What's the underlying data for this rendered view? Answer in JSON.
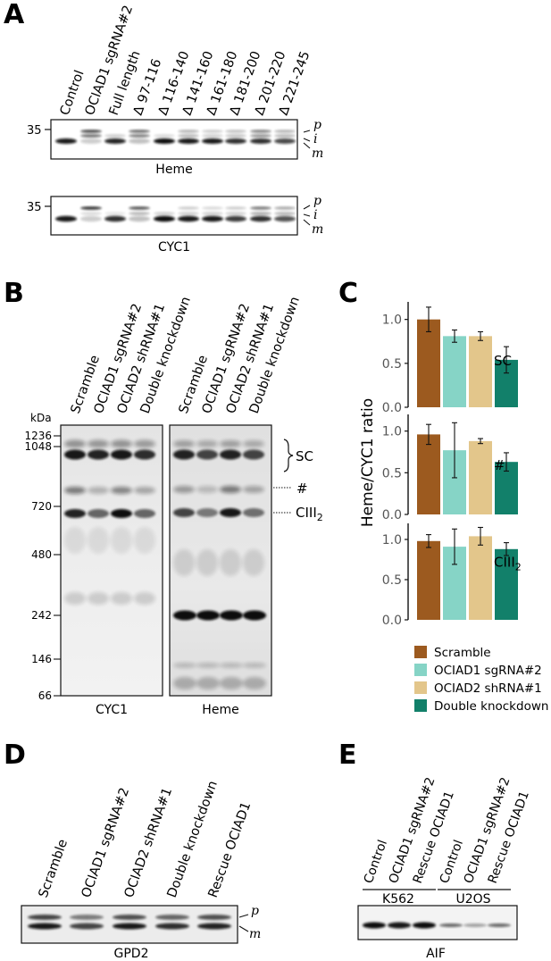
{
  "panelA": {
    "letter": "A",
    "lanes": [
      "Control",
      "OCIAD1 sgRNA#2",
      "Full length",
      "Δ 97-116",
      "Δ 116-140",
      "Δ 141-160",
      "Δ 161-180",
      "Δ 181-200",
      "Δ 201-220",
      "Δ 221-245"
    ],
    "marker": "35",
    "blot1_caption": "Heme",
    "blot2_caption": "CYC1",
    "band_labels": [
      "p",
      "i",
      "m"
    ]
  },
  "panelB": {
    "letter": "B",
    "lanes": [
      "Scramble",
      "OCIAD1 sgRNA#2",
      "OCIAD2 shRNA#1",
      "Double knockdown"
    ],
    "kda_label": "kDa",
    "markers": [
      "1236",
      "1048",
      "720",
      "480",
      "242",
      "146",
      "66"
    ],
    "caption_left": "CYC1",
    "caption_right": "Heme",
    "label_sc": "SC",
    "label_hash": "#",
    "label_ciii": "CIII",
    "label_ciii_sub": "2"
  },
  "panelC": {
    "letter": "C",
    "ylabel": "Heme/CYC1 ratio",
    "legend": [
      "Scramble",
      "OCIAD1 sgRNA#2",
      "OCIAD2 shRNA#1",
      "Double knockdown"
    ],
    "legend_colors": [
      "#9c5a1f",
      "#86d4c6",
      "#e3c68b",
      "#12806a"
    ]
  },
  "chart_data": [
    {
      "type": "bar",
      "facet_label": "SC",
      "categories": [
        "Scramble",
        "OCIAD1 sgRNA#2",
        "OCIAD2 shRNA#1",
        "Double knockdown"
      ],
      "values": [
        1.0,
        0.81,
        0.81,
        0.54
      ],
      "errors": [
        0.14,
        0.07,
        0.05,
        0.15
      ],
      "colors": [
        "#9c5a1f",
        "#86d4c6",
        "#e3c68b",
        "#12806a"
      ],
      "ylim": [
        0,
        1.2
      ],
      "yticks": [
        "0.0",
        "0.5",
        "1.0"
      ]
    },
    {
      "type": "bar",
      "facet_label": "#",
      "categories": [
        "Scramble",
        "OCIAD1 sgRNA#2",
        "OCIAD2 shRNA#1",
        "Double knockdown"
      ],
      "values": [
        0.96,
        0.77,
        0.88,
        0.63
      ],
      "errors": [
        0.12,
        0.33,
        0.03,
        0.11
      ],
      "colors": [
        "#9c5a1f",
        "#86d4c6",
        "#e3c68b",
        "#12806a"
      ],
      "ylim": [
        0,
        1.2
      ],
      "yticks": [
        "0.0",
        "0.5",
        "1.0"
      ]
    },
    {
      "type": "bar",
      "facet_label": "CIII2",
      "categories": [
        "Scramble",
        "OCIAD1 sgRNA#2",
        "OCIAD2 shRNA#1",
        "Double knockdown"
      ],
      "values": [
        0.98,
        0.91,
        1.04,
        0.88
      ],
      "errors": [
        0.08,
        0.22,
        0.11,
        0.08
      ],
      "colors": [
        "#9c5a1f",
        "#86d4c6",
        "#e3c68b",
        "#12806a"
      ],
      "ylim": [
        0,
        1.2
      ],
      "yticks": [
        "0.0",
        "0.5",
        "1.0"
      ]
    }
  ],
  "panelD": {
    "letter": "D",
    "lanes": [
      "Scramble",
      "OCIAD1 sgRNA#2",
      "OCIAD2 shRNA#1",
      "Double knockdown",
      "Rescue OCIAD1"
    ],
    "caption": "GPD2",
    "band_labels": [
      "p",
      "m"
    ]
  },
  "panelE": {
    "letter": "E",
    "lanes": [
      "Control",
      "OCIAD1 sgRNA#2",
      "Rescue OCIAD1",
      "Control",
      "OCIAD1 sgRNA#2",
      "Rescue OCIAD1"
    ],
    "group1": "K562",
    "group2": "U2OS",
    "caption": "AIF"
  }
}
